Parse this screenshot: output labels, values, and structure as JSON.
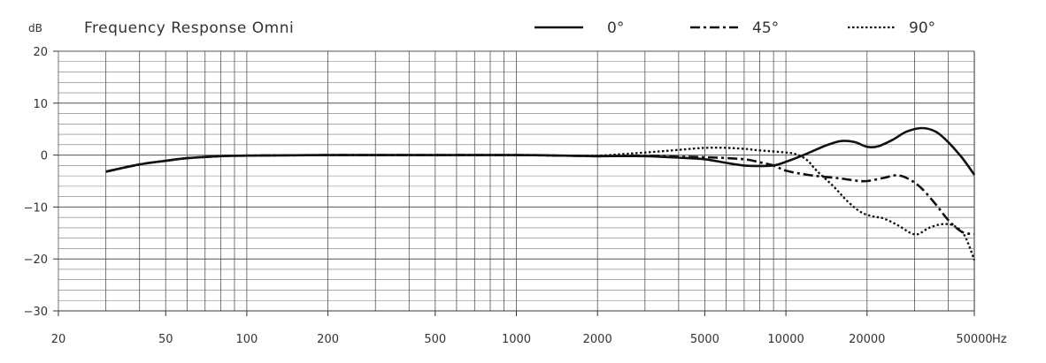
{
  "chart_data": {
    "type": "line",
    "title": "Frequency Response Omni",
    "ylabel": "dB",
    "xlabel": "Hz",
    "x_scale": "log",
    "xlim": [
      20,
      50000
    ],
    "ylim": [
      -30,
      20
    ],
    "x_ticks": [
      20,
      50,
      100,
      200,
      500,
      1000,
      2000,
      5000,
      10000,
      20000,
      50000
    ],
    "x_tick_labels": [
      "20",
      "50",
      "100",
      "200",
      "500",
      "1000",
      "2000",
      "5000",
      "10000",
      "20000",
      "50000"
    ],
    "y_ticks": [
      -30,
      -20,
      -10,
      0,
      10,
      20
    ],
    "y_tick_labels": [
      "−30",
      "−20",
      "−10",
      "0",
      "10",
      "20"
    ],
    "grid": true,
    "legend_position": "top-right",
    "series": [
      {
        "name": "0°",
        "style": "solid",
        "color": "#111111",
        "points": [
          [
            30,
            -3.2
          ],
          [
            40,
            -1.8
          ],
          [
            50,
            -1.1
          ],
          [
            60,
            -0.6
          ],
          [
            80,
            -0.2
          ],
          [
            100,
            -0.1
          ],
          [
            200,
            0
          ],
          [
            500,
            0
          ],
          [
            1000,
            0
          ],
          [
            1500,
            -0.1
          ],
          [
            2000,
            -0.2
          ],
          [
            3000,
            -0.2
          ],
          [
            4000,
            -0.5
          ],
          [
            5000,
            -0.8
          ],
          [
            6000,
            -1.5
          ],
          [
            7000,
            -2.0
          ],
          [
            8000,
            -2.1
          ],
          [
            9000,
            -2.0
          ],
          [
            10000,
            -1.3
          ],
          [
            12000,
            0.3
          ],
          [
            14000,
            1.8
          ],
          [
            16000,
            2.7
          ],
          [
            18000,
            2.5
          ],
          [
            20000,
            1.6
          ],
          [
            22000,
            1.7
          ],
          [
            25000,
            3.0
          ],
          [
            28000,
            4.5
          ],
          [
            32000,
            5.2
          ],
          [
            36000,
            4.5
          ],
          [
            40000,
            2.5
          ],
          [
            45000,
            -0.5
          ],
          [
            50000,
            -3.8
          ]
        ]
      },
      {
        "name": "45°",
        "style": "dashdot",
        "color": "#111111",
        "points": [
          [
            30,
            -3.2
          ],
          [
            40,
            -1.8
          ],
          [
            50,
            -1.1
          ],
          [
            60,
            -0.6
          ],
          [
            80,
            -0.2
          ],
          [
            100,
            -0.1
          ],
          [
            200,
            0
          ],
          [
            500,
            0
          ],
          [
            1000,
            0
          ],
          [
            1500,
            -0.1
          ],
          [
            2000,
            -0.2
          ],
          [
            3000,
            -0.1
          ],
          [
            4000,
            -0.3
          ],
          [
            5000,
            -0.4
          ],
          [
            7000,
            -0.8
          ],
          [
            8000,
            -1.4
          ],
          [
            9000,
            -2.0
          ],
          [
            10000,
            -3.0
          ],
          [
            12000,
            -3.8
          ],
          [
            14000,
            -4.2
          ],
          [
            16000,
            -4.5
          ],
          [
            18000,
            -4.9
          ],
          [
            20000,
            -5.0
          ],
          [
            23000,
            -4.4
          ],
          [
            26000,
            -3.9
          ],
          [
            29000,
            -4.8
          ],
          [
            32000,
            -6.5
          ],
          [
            36000,
            -9.5
          ],
          [
            40000,
            -12.5
          ],
          [
            45000,
            -14.8
          ],
          [
            50000,
            -15.2
          ]
        ]
      },
      {
        "name": "90°",
        "style": "dotted",
        "color": "#111111",
        "points": [
          [
            30,
            -3.2
          ],
          [
            40,
            -1.8
          ],
          [
            50,
            -1.1
          ],
          [
            60,
            -0.6
          ],
          [
            80,
            -0.2
          ],
          [
            100,
            -0.1
          ],
          [
            200,
            0
          ],
          [
            500,
            0
          ],
          [
            1000,
            0
          ],
          [
            1500,
            -0.1
          ],
          [
            2000,
            -0.1
          ],
          [
            2500,
            0.2
          ],
          [
            3000,
            0.5
          ],
          [
            4000,
            1.0
          ],
          [
            5000,
            1.4
          ],
          [
            6000,
            1.4
          ],
          [
            7000,
            1.2
          ],
          [
            8000,
            0.9
          ],
          [
            10000,
            0.5
          ],
          [
            11000,
            0.1
          ],
          [
            12000,
            -1.0
          ],
          [
            13000,
            -3.0
          ],
          [
            15000,
            -6.0
          ],
          [
            17000,
            -9.0
          ],
          [
            19000,
            -11.0
          ],
          [
            21000,
            -11.8
          ],
          [
            23000,
            -12.2
          ],
          [
            26000,
            -13.5
          ],
          [
            29000,
            -15.0
          ],
          [
            31000,
            -15.2
          ],
          [
            34000,
            -14.0
          ],
          [
            38000,
            -13.3
          ],
          [
            42000,
            -13.6
          ],
          [
            46000,
            -15.5
          ],
          [
            50000,
            -20.2
          ]
        ]
      }
    ]
  }
}
